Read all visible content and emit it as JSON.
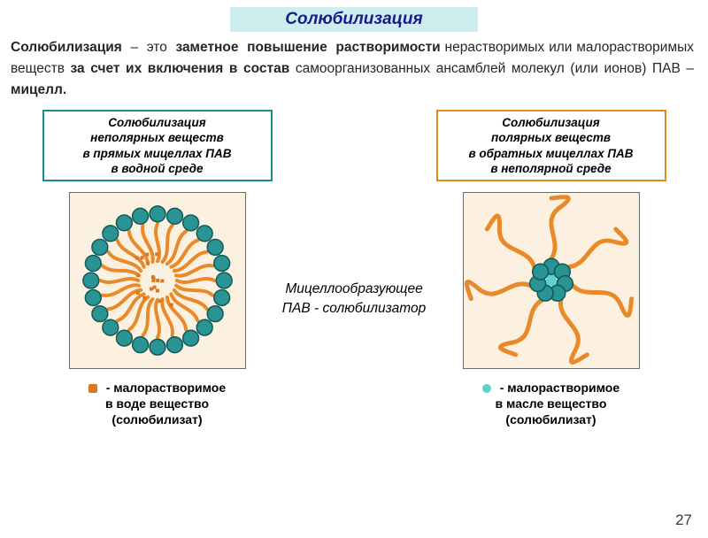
{
  "colors": {
    "title_bg": "#cdeeee",
    "title_text": "#1a1a8a",
    "body_text": "#262626",
    "left_border": "#1a8a8a",
    "right_border": "#e08a1a",
    "diagram_bg": "#fcf0e0",
    "frame_border": "#6b6b6b",
    "head": "#2a9494",
    "tail": "#e88a2a",
    "solute_orange": "#d97820",
    "solute_cyan": "#5dd0d0"
  },
  "title": "Солюбилизация",
  "definition_html": "<b>Солюбилизация</b> &nbsp;–&nbsp; это &nbsp;<b>заметное &nbsp;повышение &nbsp;растворимости</b> нерастворимых или малорастворимых веществ <b>за счет их включения в состав</b> самоорганизованных ансамблей молекул (или ионов) ПАВ – <b>мицелл.</b>",
  "left": {
    "label_l1": "Солюбилизация",
    "label_l2": "неполярных веществ",
    "label_l3": "в прямых мицеллах ПАВ",
    "label_l4": "в водной среде",
    "legend_l1": "- малорастворимое",
    "legend_l2": "в воде вещество",
    "legend_l3": "(солюбилизат)"
  },
  "right": {
    "label_l1": "Солюбилизация",
    "label_l2": "полярных веществ",
    "label_l3": "в обратных мицеллах ПАВ",
    "label_l4": "в неполярной среде",
    "legend_l1": "- малорастворимое",
    "legend_l2": "в масле вещество",
    "legend_l3": "(солюбилизат)"
  },
  "center_caption_l1": "Мицеллообразующее",
  "center_caption_l2": "ПАВ - солюбилизатор",
  "page_number": "27",
  "direct_micelle": {
    "type": "infographic",
    "outer_heads": 24,
    "outer_radius": 76,
    "head_r": 9,
    "head_fill": "#2a9494",
    "head_stroke": "#0f5858",
    "tail_stroke": "#e88a2a",
    "tail_width": 4,
    "tail_inner_radius": 22,
    "solute_count": 18,
    "solute_fill": "#d97820",
    "solute_size": 4,
    "inner_boundary_r": 64
  },
  "reverse_micelle": {
    "type": "infographic",
    "heads": 7,
    "core_radius": 16,
    "head_r": 9,
    "head_fill": "#2a9494",
    "head_stroke": "#0f5858",
    "tail_stroke": "#e88a2a",
    "tail_width": 5,
    "tail_length": 78,
    "solute_count": 3,
    "solute_fill": "#5dd0d0",
    "solute_r": 5
  }
}
